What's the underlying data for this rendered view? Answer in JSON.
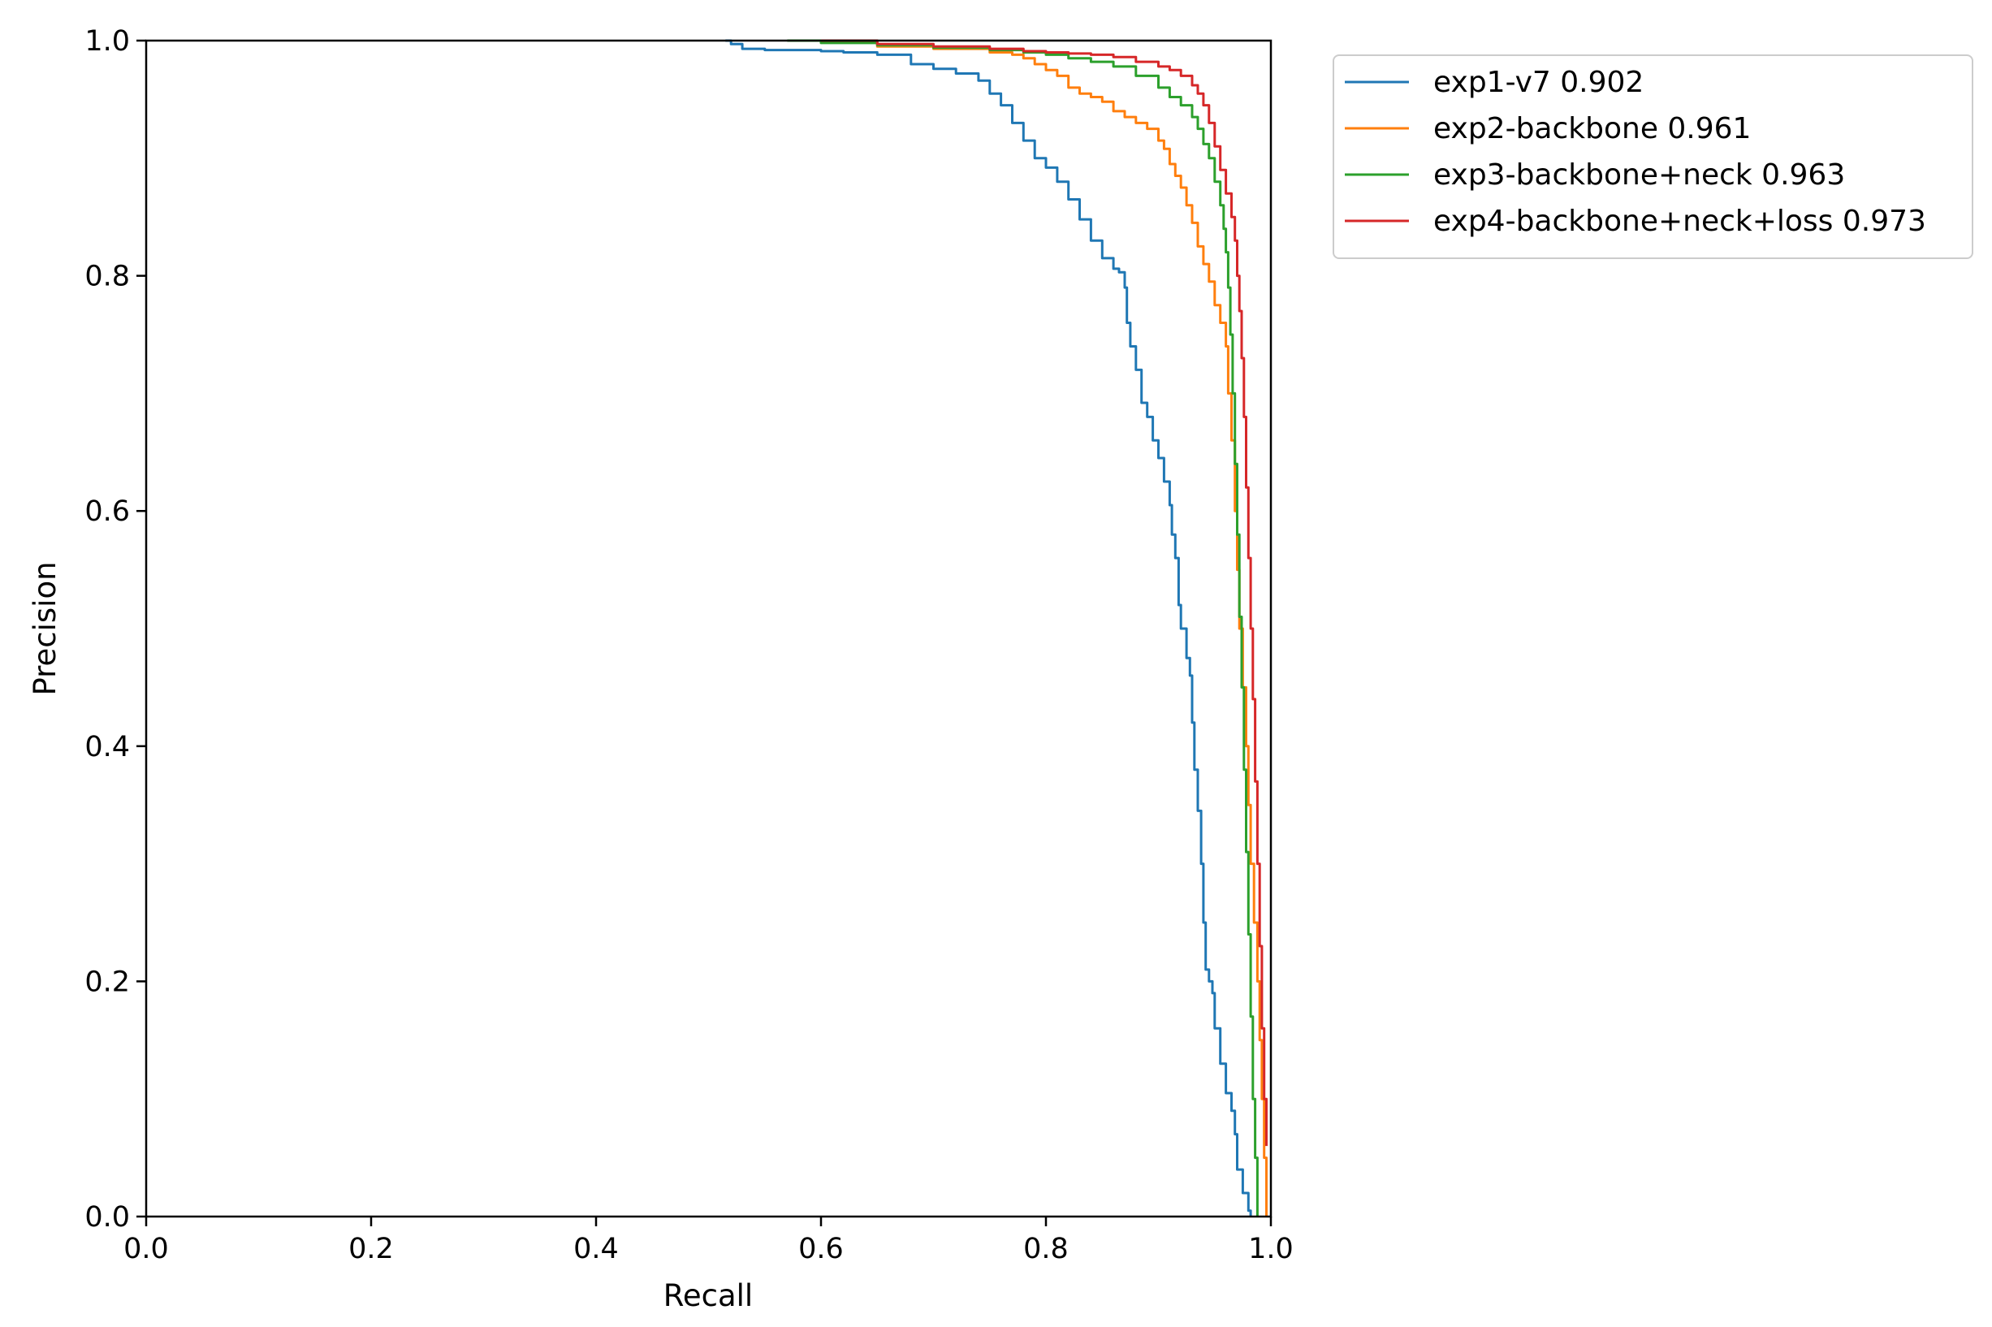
{
  "chart_data": {
    "type": "line",
    "title": "",
    "xlabel": "Recall",
    "ylabel": "Precision",
    "xlim": [
      0.0,
      1.0
    ],
    "ylim": [
      0.0,
      1.0
    ],
    "x_ticks": [
      "0.0",
      "0.2",
      "0.4",
      "0.6",
      "0.8",
      "1.0"
    ],
    "y_ticks": [
      "0.0",
      "0.2",
      "0.4",
      "0.6",
      "0.8",
      "1.0"
    ],
    "grid": false,
    "legend_position": "outside top-right",
    "series": [
      {
        "name": "exp1-v7 0.902",
        "color": "#1f77b4",
        "points": [
          [
            0.515,
            1.0
          ],
          [
            0.52,
            0.997
          ],
          [
            0.53,
            0.993
          ],
          [
            0.55,
            0.992
          ],
          [
            0.6,
            0.991
          ],
          [
            0.62,
            0.99
          ],
          [
            0.65,
            0.988
          ],
          [
            0.68,
            0.98
          ],
          [
            0.7,
            0.976
          ],
          [
            0.72,
            0.972
          ],
          [
            0.74,
            0.966
          ],
          [
            0.75,
            0.955
          ],
          [
            0.76,
            0.945
          ],
          [
            0.77,
            0.93
          ],
          [
            0.78,
            0.915
          ],
          [
            0.79,
            0.9
          ],
          [
            0.8,
            0.892
          ],
          [
            0.81,
            0.88
          ],
          [
            0.82,
            0.865
          ],
          [
            0.83,
            0.848
          ],
          [
            0.84,
            0.83
          ],
          [
            0.85,
            0.815
          ],
          [
            0.86,
            0.806
          ],
          [
            0.865,
            0.803
          ],
          [
            0.87,
            0.79
          ],
          [
            0.872,
            0.76
          ],
          [
            0.875,
            0.74
          ],
          [
            0.88,
            0.72
          ],
          [
            0.885,
            0.692
          ],
          [
            0.89,
            0.68
          ],
          [
            0.895,
            0.66
          ],
          [
            0.9,
            0.645
          ],
          [
            0.905,
            0.625
          ],
          [
            0.91,
            0.605
          ],
          [
            0.912,
            0.58
          ],
          [
            0.915,
            0.56
          ],
          [
            0.918,
            0.52
          ],
          [
            0.92,
            0.5
          ],
          [
            0.925,
            0.475
          ],
          [
            0.928,
            0.46
          ],
          [
            0.93,
            0.42
          ],
          [
            0.932,
            0.38
          ],
          [
            0.935,
            0.345
          ],
          [
            0.938,
            0.3
          ],
          [
            0.94,
            0.25
          ],
          [
            0.942,
            0.21
          ],
          [
            0.945,
            0.2
          ],
          [
            0.948,
            0.19
          ],
          [
            0.95,
            0.16
          ],
          [
            0.955,
            0.13
          ],
          [
            0.96,
            0.105
          ],
          [
            0.965,
            0.09
          ],
          [
            0.968,
            0.07
          ],
          [
            0.97,
            0.04
          ],
          [
            0.975,
            0.02
          ],
          [
            0.98,
            0.005
          ],
          [
            0.982,
            0.0
          ]
        ]
      },
      {
        "name": "exp2-backbone 0.961",
        "color": "#ff7f0e",
        "points": [
          [
            0.62,
            1.0
          ],
          [
            0.65,
            0.995
          ],
          [
            0.7,
            0.993
          ],
          [
            0.75,
            0.99
          ],
          [
            0.77,
            0.988
          ],
          [
            0.78,
            0.985
          ],
          [
            0.79,
            0.98
          ],
          [
            0.8,
            0.975
          ],
          [
            0.81,
            0.97
          ],
          [
            0.82,
            0.96
          ],
          [
            0.83,
            0.955
          ],
          [
            0.84,
            0.952
          ],
          [
            0.85,
            0.948
          ],
          [
            0.86,
            0.94
          ],
          [
            0.87,
            0.935
          ],
          [
            0.88,
            0.93
          ],
          [
            0.89,
            0.925
          ],
          [
            0.9,
            0.915
          ],
          [
            0.905,
            0.908
          ],
          [
            0.91,
            0.895
          ],
          [
            0.915,
            0.885
          ],
          [
            0.92,
            0.875
          ],
          [
            0.925,
            0.86
          ],
          [
            0.93,
            0.845
          ],
          [
            0.935,
            0.825
          ],
          [
            0.94,
            0.81
          ],
          [
            0.945,
            0.795
          ],
          [
            0.95,
            0.775
          ],
          [
            0.955,
            0.76
          ],
          [
            0.96,
            0.74
          ],
          [
            0.962,
            0.7
          ],
          [
            0.965,
            0.66
          ],
          [
            0.968,
            0.6
          ],
          [
            0.97,
            0.55
          ],
          [
            0.972,
            0.5
          ],
          [
            0.975,
            0.45
          ],
          [
            0.978,
            0.4
          ],
          [
            0.98,
            0.35
          ],
          [
            0.982,
            0.3
          ],
          [
            0.985,
            0.25
          ],
          [
            0.988,
            0.2
          ],
          [
            0.99,
            0.15
          ],
          [
            0.992,
            0.1
          ],
          [
            0.994,
            0.05
          ],
          [
            0.996,
            0.0
          ]
        ]
      },
      {
        "name": "exp3-backbone+neck 0.963",
        "color": "#2ca02c",
        "points": [
          [
            0.57,
            1.0
          ],
          [
            0.6,
            0.998
          ],
          [
            0.65,
            0.996
          ],
          [
            0.7,
            0.994
          ],
          [
            0.75,
            0.992
          ],
          [
            0.78,
            0.99
          ],
          [
            0.8,
            0.988
          ],
          [
            0.82,
            0.985
          ],
          [
            0.84,
            0.982
          ],
          [
            0.86,
            0.978
          ],
          [
            0.88,
            0.97
          ],
          [
            0.9,
            0.96
          ],
          [
            0.91,
            0.952
          ],
          [
            0.92,
            0.945
          ],
          [
            0.93,
            0.935
          ],
          [
            0.935,
            0.925
          ],
          [
            0.94,
            0.912
          ],
          [
            0.945,
            0.9
          ],
          [
            0.95,
            0.88
          ],
          [
            0.955,
            0.86
          ],
          [
            0.958,
            0.84
          ],
          [
            0.96,
            0.82
          ],
          [
            0.962,
            0.79
          ],
          [
            0.964,
            0.75
          ],
          [
            0.966,
            0.7
          ],
          [
            0.968,
            0.64
          ],
          [
            0.97,
            0.58
          ],
          [
            0.972,
            0.51
          ],
          [
            0.974,
            0.45
          ],
          [
            0.976,
            0.38
          ],
          [
            0.978,
            0.31
          ],
          [
            0.98,
            0.24
          ],
          [
            0.982,
            0.17
          ],
          [
            0.984,
            0.1
          ],
          [
            0.986,
            0.05
          ],
          [
            0.988,
            0.0
          ]
        ]
      },
      {
        "name": "exp4-backbone+neck+loss 0.973",
        "color": "#d62728",
        "points": [
          [
            0.6,
            1.0
          ],
          [
            0.65,
            0.997
          ],
          [
            0.7,
            0.995
          ],
          [
            0.75,
            0.993
          ],
          [
            0.78,
            0.991
          ],
          [
            0.8,
            0.99
          ],
          [
            0.82,
            0.989
          ],
          [
            0.84,
            0.988
          ],
          [
            0.86,
            0.986
          ],
          [
            0.88,
            0.982
          ],
          [
            0.9,
            0.978
          ],
          [
            0.91,
            0.975
          ],
          [
            0.92,
            0.97
          ],
          [
            0.93,
            0.962
          ],
          [
            0.935,
            0.955
          ],
          [
            0.94,
            0.945
          ],
          [
            0.945,
            0.93
          ],
          [
            0.95,
            0.91
          ],
          [
            0.955,
            0.89
          ],
          [
            0.96,
            0.87
          ],
          [
            0.965,
            0.85
          ],
          [
            0.968,
            0.83
          ],
          [
            0.97,
            0.8
          ],
          [
            0.972,
            0.77
          ],
          [
            0.974,
            0.73
          ],
          [
            0.976,
            0.68
          ],
          [
            0.978,
            0.62
          ],
          [
            0.98,
            0.56
          ],
          [
            0.982,
            0.5
          ],
          [
            0.984,
            0.44
          ],
          [
            0.986,
            0.37
          ],
          [
            0.988,
            0.3
          ],
          [
            0.99,
            0.23
          ],
          [
            0.992,
            0.16
          ],
          [
            0.994,
            0.1
          ],
          [
            0.996,
            0.06
          ]
        ]
      }
    ]
  }
}
